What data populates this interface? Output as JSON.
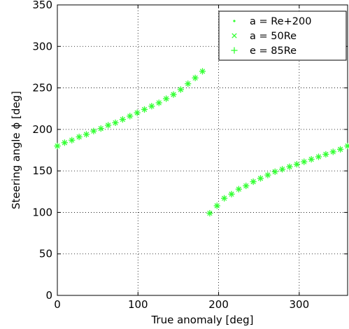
{
  "chart_data": {
    "type": "scatter",
    "xlabel": "True anomaly [deg]",
    "ylabel": "Steering angle ϕ [deg]",
    "xlim": [
      0,
      360
    ],
    "ylim": [
      0,
      350
    ],
    "xticks": [
      0,
      100,
      200,
      300
    ],
    "yticks": [
      0,
      50,
      100,
      150,
      200,
      250,
      300,
      350
    ],
    "grid": true,
    "legend_position": "top-right",
    "marker_color": "#33ff33",
    "series": [
      {
        "name": "a = Re+200",
        "marker": "dot",
        "x": [
          0,
          9,
          18,
          27,
          36,
          45,
          54,
          63,
          72,
          81,
          90,
          99,
          108,
          117,
          126,
          135,
          144,
          153,
          162,
          171,
          180,
          189,
          198,
          207,
          216,
          225,
          234,
          243,
          252,
          261,
          270,
          279,
          288,
          297,
          306,
          315,
          324,
          333,
          342,
          351,
          360
        ],
        "y": [
          180,
          184,
          187,
          191,
          194,
          198,
          201,
          205,
          208,
          212,
          216,
          220,
          224,
          228,
          232,
          237,
          242,
          248,
          255,
          262,
          270,
          99,
          108,
          117,
          122,
          128,
          132,
          137,
          141,
          145,
          149,
          152,
          155,
          158,
          161,
          164,
          167,
          170,
          173,
          176,
          180
        ]
      },
      {
        "name": "a = 50Re",
        "marker": "x",
        "x": [
          0,
          9,
          18,
          27,
          36,
          45,
          54,
          63,
          72,
          81,
          90,
          99,
          108,
          117,
          126,
          135,
          144,
          153,
          162,
          171,
          180,
          189,
          198,
          207,
          216,
          225,
          234,
          243,
          252,
          261,
          270,
          279,
          288,
          297,
          306,
          315,
          324,
          333,
          342,
          351,
          360
        ],
        "y": [
          180,
          184,
          187,
          191,
          194,
          198,
          201,
          205,
          208,
          212,
          216,
          220,
          224,
          228,
          232,
          237,
          242,
          248,
          255,
          262,
          270,
          99,
          108,
          117,
          122,
          128,
          132,
          137,
          141,
          145,
          149,
          152,
          155,
          158,
          161,
          164,
          167,
          170,
          173,
          176,
          180
        ]
      },
      {
        "name": "e = 85Re",
        "marker": "plus",
        "x": [
          0,
          9,
          18,
          27,
          36,
          45,
          54,
          63,
          72,
          81,
          90,
          99,
          108,
          117,
          126,
          135,
          144,
          153,
          162,
          171,
          180,
          189,
          198,
          207,
          216,
          225,
          234,
          243,
          252,
          261,
          270,
          279,
          288,
          297,
          306,
          315,
          324,
          333,
          342,
          351,
          360
        ],
        "y": [
          180,
          184,
          187,
          191,
          194,
          198,
          201,
          205,
          208,
          212,
          216,
          220,
          224,
          228,
          232,
          237,
          242,
          248,
          255,
          262,
          270,
          99,
          108,
          117,
          122,
          128,
          132,
          137,
          141,
          145,
          149,
          152,
          155,
          158,
          161,
          164,
          167,
          170,
          173,
          176,
          180
        ]
      }
    ]
  }
}
